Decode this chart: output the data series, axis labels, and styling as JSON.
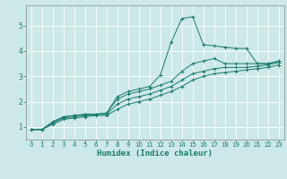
{
  "xlabel": "Humidex (Indice chaleur)",
  "bg_color": "#cce8e8",
  "grid_color": "#ffffff",
  "line_color": "#1a7a6e",
  "xlim": [
    -0.5,
    23.5
  ],
  "ylim": [
    0.5,
    5.8
  ],
  "xticks": [
    0,
    1,
    2,
    3,
    4,
    5,
    6,
    7,
    8,
    9,
    10,
    11,
    12,
    13,
    14,
    15,
    16,
    17,
    18,
    19,
    20,
    21,
    22,
    23
  ],
  "yticks": [
    1,
    2,
    3,
    4,
    5
  ],
  "curve1_x": [
    0,
    1,
    2,
    3,
    4,
    5,
    6,
    7,
    8,
    9,
    10,
    11,
    12,
    13,
    14,
    15,
    16,
    17,
    18,
    19,
    20,
    21,
    22,
    23
  ],
  "curve1_y": [
    0.9,
    0.9,
    1.2,
    1.4,
    1.45,
    1.5,
    1.5,
    1.55,
    2.2,
    2.4,
    2.5,
    2.6,
    3.05,
    4.35,
    5.28,
    5.35,
    4.25,
    4.2,
    4.15,
    4.1,
    4.1,
    3.5,
    3.5,
    3.6
  ],
  "curve2_x": [
    0,
    1,
    2,
    3,
    4,
    5,
    6,
    7,
    8,
    9,
    10,
    11,
    12,
    13,
    14,
    15,
    16,
    17,
    18,
    19,
    20,
    21,
    22,
    23
  ],
  "curve2_y": [
    0.9,
    0.9,
    1.2,
    1.4,
    1.45,
    1.5,
    1.5,
    1.55,
    2.1,
    2.3,
    2.4,
    2.5,
    2.65,
    2.8,
    3.2,
    3.5,
    3.6,
    3.7,
    3.5,
    3.5,
    3.5,
    3.5,
    3.5,
    3.6
  ],
  "curve3_x": [
    0,
    1,
    2,
    3,
    4,
    5,
    6,
    7,
    8,
    9,
    10,
    11,
    12,
    13,
    14,
    15,
    16,
    17,
    18,
    19,
    20,
    21,
    22,
    23
  ],
  "curve3_y": [
    0.9,
    0.9,
    1.15,
    1.35,
    1.4,
    1.45,
    1.5,
    1.5,
    1.9,
    2.1,
    2.2,
    2.3,
    2.45,
    2.6,
    2.85,
    3.1,
    3.2,
    3.3,
    3.35,
    3.35,
    3.35,
    3.4,
    3.45,
    3.55
  ],
  "curve4_x": [
    0,
    1,
    2,
    3,
    4,
    5,
    6,
    7,
    8,
    9,
    10,
    11,
    12,
    13,
    14,
    15,
    16,
    17,
    18,
    19,
    20,
    21,
    22,
    23
  ],
  "curve4_y": [
    0.9,
    0.9,
    1.1,
    1.3,
    1.35,
    1.4,
    1.45,
    1.45,
    1.7,
    1.9,
    2.0,
    2.1,
    2.25,
    2.4,
    2.6,
    2.85,
    3.0,
    3.1,
    3.15,
    3.2,
    3.25,
    3.3,
    3.35,
    3.45
  ],
  "xlabel_fontsize": 6.5,
  "xlabel_color": "#1a7a6e",
  "tick_fontsize": 5,
  "tick_color": "#1a7a6e"
}
